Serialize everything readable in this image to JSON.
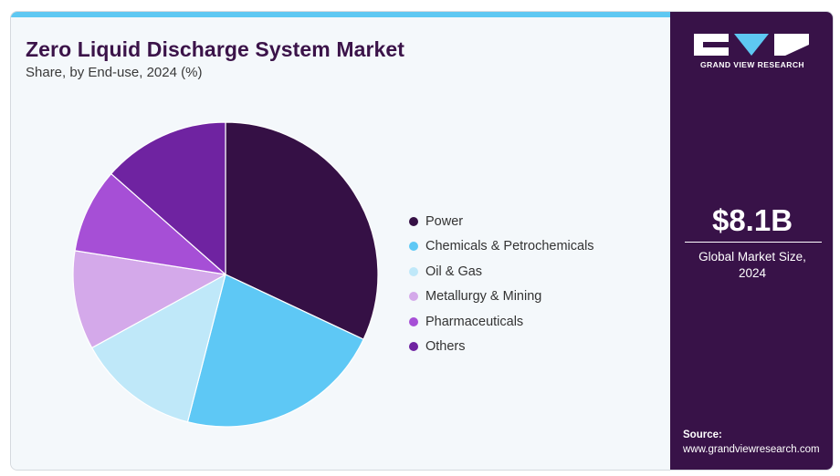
{
  "title": "Zero Liquid Discharge System Market",
  "subtitle": "Share, by End-use, 2024 (%)",
  "chart_data": {
    "type": "pie",
    "title": "Zero Liquid Discharge System Market",
    "subtitle": "Share, by End-use, 2024 (%)",
    "start_angle_deg": 0,
    "direction": "clockwise",
    "legend_position": "right",
    "slices": [
      {
        "label": "Power",
        "value": 32.0,
        "color": "#351045"
      },
      {
        "label": "Chemicals & Petrochemicals",
        "value": 22.0,
        "color": "#5ec8f5"
      },
      {
        "label": "Oil & Gas",
        "value": 13.0,
        "color": "#bfe8f9"
      },
      {
        "label": "Metallurgy & Mining",
        "value": 10.5,
        "color": "#d4a9ea"
      },
      {
        "label": "Pharmaceuticals",
        "value": 9.0,
        "color": "#a64fd6"
      },
      {
        "label": "Others",
        "value": 13.5,
        "color": "#6f23a1"
      }
    ]
  },
  "side_panel": {
    "brand": "GRAND VIEW RESEARCH",
    "market_size_value": "$8.1B",
    "market_size_label_line1": "Global Market Size,",
    "market_size_label_line2": "2024",
    "source_title": "Source:",
    "source_url": "www.grandviewresearch.com"
  },
  "colors": {
    "accent": "#5ec8f2",
    "side_panel_bg": "#381248",
    "title": "#3b1349",
    "background": "#f4f8fb"
  }
}
